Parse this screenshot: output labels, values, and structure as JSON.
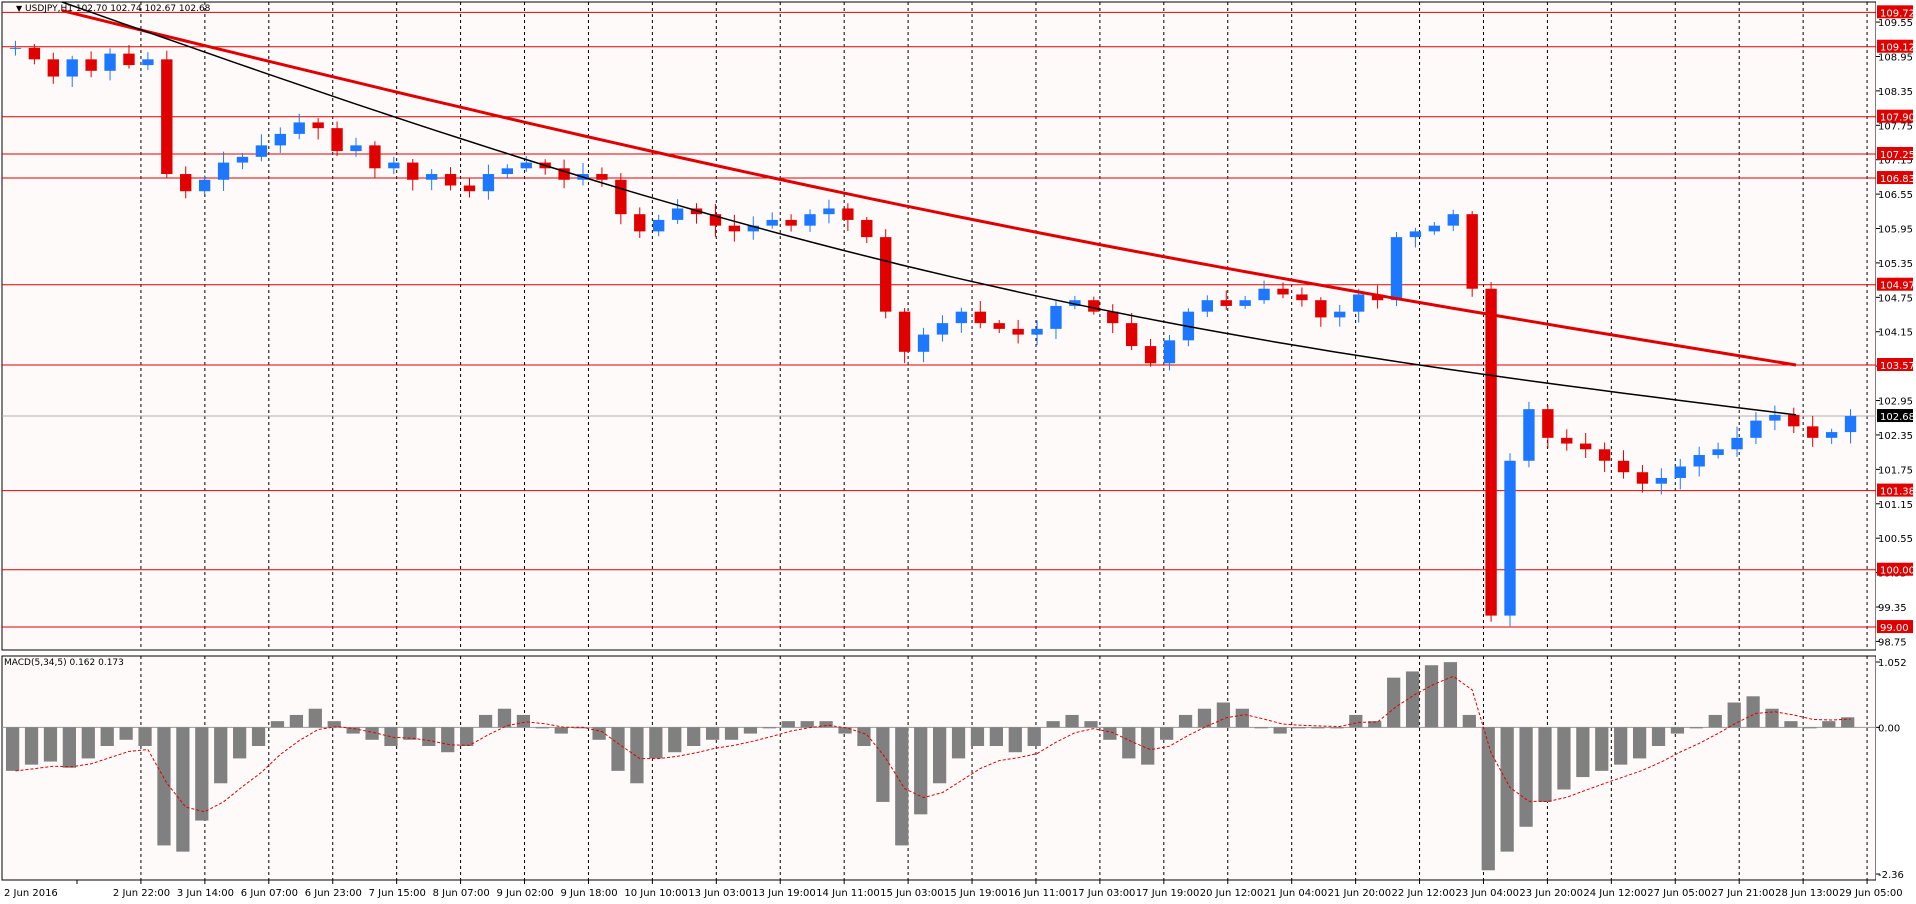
{
  "header": {
    "symbol_line": "USDJPY,H1  102.70 102.74 102.67 102.68",
    "indicator_line": "MACD(5,34,5) 0.162 0.173"
  },
  "colors": {
    "bull": "#1e78ff",
    "bear": "#e00000",
    "level": "#e00000",
    "ma_slow": "#e00000",
    "ma_fast": "#000000",
    "hist": "#808080",
    "signal": "#e00000",
    "tag_bg": "#e00000",
    "price_tag_bg": "#000000",
    "bg": "#fffafa"
  },
  "chart_data": [
    {
      "type": "candlestick",
      "name": "USDJPY,H1",
      "ylim": [
        98.6,
        109.9
      ],
      "y_ticks": [
        "109.55",
        "108.95",
        "108.35",
        "107.75",
        "107.15",
        "106.55",
        "105.95",
        "105.35",
        "104.75",
        "104.15",
        "103.55",
        "102.95",
        "102.35",
        "101.75",
        "101.15",
        "100.55",
        "99.95",
        "99.35",
        "98.75"
      ],
      "x_labels": [
        "2 Jun 2016",
        "2 Jun 22:00",
        "3 Jun 14:00",
        "6 Jun 07:00",
        "6 Jun 23:00",
        "7 Jun 15:00",
        "8 Jun 07:00",
        "9 Jun 02:00",
        "9 Jun 18:00",
        "10 Jun 10:00",
        "13 Jun 03:00",
        "13 Jun 19:00",
        "14 Jun 11:00",
        "15 Jun 03:00",
        "15 Jun 19:00",
        "16 Jun 11:00",
        "17 Jun 03:00",
        "17 Jun 19:00",
        "20 Jun 12:00",
        "21 Jun 04:00",
        "21 Jun 20:00",
        "22 Jun 12:00",
        "23 Jun 04:00",
        "23 Jun 20:00",
        "24 Jun 12:00",
        "27 Jun 05:00",
        "27 Jun 21:00",
        "28 Jun 13:00",
        "29 Jun 05:00"
      ],
      "levels": [
        "109.72",
        "109.12",
        "107.90",
        "107.25",
        "106.83",
        "104.97",
        "103.57",
        "101.38",
        "100.00",
        "99.00"
      ],
      "current_price": "102.68",
      "close_path": [
        109.1,
        108.9,
        108.6,
        108.9,
        108.7,
        109.0,
        108.8,
        108.9,
        106.9,
        106.6,
        106.8,
        107.1,
        107.2,
        107.4,
        107.6,
        107.8,
        107.7,
        107.3,
        107.4,
        107.0,
        107.1,
        106.8,
        106.9,
        106.7,
        106.6,
        106.9,
        107.0,
        107.1,
        107.0,
        106.8,
        106.9,
        106.8,
        106.2,
        105.9,
        106.1,
        106.3,
        106.2,
        106.0,
        105.9,
        106.0,
        106.1,
        106.0,
        106.2,
        106.3,
        106.1,
        105.8,
        104.5,
        103.8,
        104.1,
        104.3,
        104.5,
        104.3,
        104.2,
        104.1,
        104.2,
        104.6,
        104.7,
        104.5,
        104.3,
        103.9,
        103.6,
        104.0,
        104.5,
        104.7,
        104.6,
        104.7,
        104.9,
        104.8,
        104.7,
        104.4,
        104.5,
        104.8,
        104.7,
        105.8,
        105.9,
        106.0,
        106.2,
        104.9,
        99.2,
        101.9,
        102.8,
        102.3,
        102.2,
        102.1,
        101.9,
        101.7,
        101.5,
        101.6,
        101.8,
        102.0,
        102.1,
        102.3,
        102.6,
        102.7,
        102.5,
        102.3,
        102.4,
        102.68
      ],
      "ma_slow": {
        "start": 109.75,
        "end": 103.57,
        "type": "descending"
      },
      "ma_fast": {
        "start": 109.9,
        "end": 102.7,
        "type": "descending"
      }
    },
    {
      "type": "bar",
      "name": "MACD(5,34,5)",
      "values": [
        0.162,
        0.173
      ],
      "ylim": [
        -2.36,
        1.052
      ],
      "y_ticks": [
        "1.052",
        "0.00",
        "-2.36"
      ],
      "hist_path": [
        -0.7,
        -0.6,
        -0.55,
        -0.65,
        -0.5,
        -0.3,
        -0.2,
        -0.3,
        -1.9,
        -2.0,
        -1.5,
        -0.9,
        -0.5,
        -0.3,
        0.1,
        0.2,
        0.3,
        0.1,
        -0.1,
        -0.2,
        -0.3,
        -0.2,
        -0.3,
        -0.4,
        -0.3,
        0.2,
        0.3,
        0.2,
        0.0,
        -0.1,
        0.0,
        -0.2,
        -0.7,
        -0.9,
        -0.5,
        -0.4,
        -0.3,
        -0.2,
        -0.2,
        -0.1,
        0.0,
        0.1,
        0.1,
        0.1,
        -0.1,
        -0.3,
        -1.2,
        -1.9,
        -1.4,
        -0.9,
        -0.5,
        -0.3,
        -0.3,
        -0.4,
        -0.3,
        0.1,
        0.2,
        0.1,
        -0.2,
        -0.5,
        -0.6,
        -0.2,
        0.2,
        0.3,
        0.4,
        0.3,
        0.0,
        -0.1,
        0.0,
        0.0,
        0.0,
        0.2,
        0.1,
        0.8,
        0.9,
        1.0,
        1.05,
        0.2,
        -2.3,
        -2.0,
        -1.6,
        -1.2,
        -1.0,
        -0.8,
        -0.7,
        -0.6,
        -0.5,
        -0.3,
        -0.1,
        0.0,
        0.2,
        0.4,
        0.5,
        0.3,
        0.1,
        0.0,
        0.1,
        0.162
      ]
    }
  ]
}
